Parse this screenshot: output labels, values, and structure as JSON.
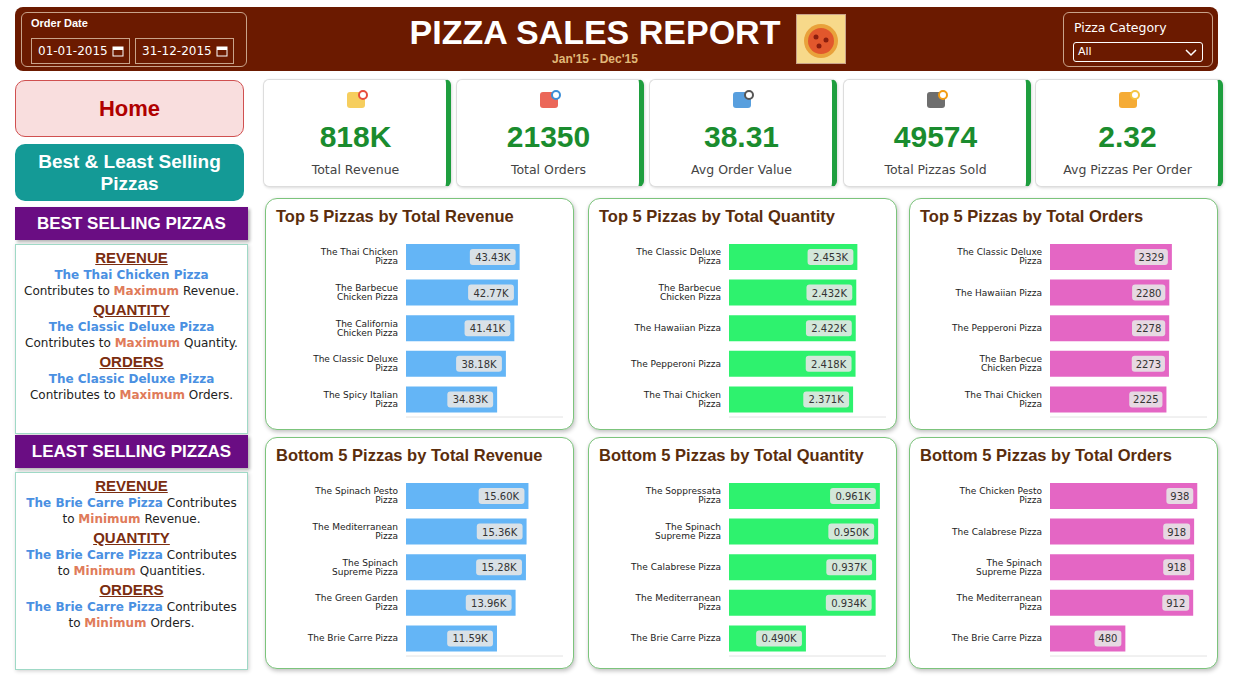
{
  "header": {
    "title": "PIZZA SALES REPORT",
    "subtitle": "Jan'15 - Dec'15"
  },
  "filters": {
    "date": {
      "label": "Order Date",
      "start": "01-01-2015",
      "end": "31-12-2015"
    },
    "category": {
      "label": "Pizza Category",
      "value": "All"
    }
  },
  "nav": [
    "Home",
    "Best & Least Selling Pizzas"
  ],
  "kpis": [
    {
      "value": "818K",
      "label": "Total Revenue"
    },
    {
      "value": 21350,
      "label": "Total Orders"
    },
    {
      "value": 38.31,
      "label": "Avg Order Value"
    },
    {
      "value": 49574,
      "label": "Total Pizzas Sold"
    },
    {
      "value": 2.32,
      "label": "Avg Pizzas Per Order"
    }
  ],
  "sidebar": [
    {
      "title": "BEST SELLING PIZZAS",
      "items": [
        {
          "heading": "REVENUE",
          "pizza": "The Thai Chicken Pizza",
          "before": "Contributes to",
          "highlight": "Maximum",
          "after": "Revenue."
        },
        {
          "heading": "QUANTITY",
          "pizza": "The Classic Deluxe Pizza",
          "before": "Contributes to",
          "highlight": "Maximum",
          "after": "Quantity."
        },
        {
          "heading": "ORDERS",
          "pizza": "The Classic Deluxe Pizza",
          "before": "Contributes to",
          "highlight": "Maximum",
          "after": "Orders."
        }
      ]
    },
    {
      "title": "LEAST SELLING PIZZAS",
      "items": [
        {
          "heading": "REVENUE",
          "pizza": "The Brie Carre Pizza",
          "before": "Contributes to",
          "highlight": "Minimum",
          "after": "Revenue."
        },
        {
          "heading": "QUANTITY",
          "pizza": "The Brie Carre Pizza",
          "before": "Contributes to",
          "highlight": "Minimum",
          "after": "Quantities."
        },
        {
          "heading": "ORDERS",
          "pizza": "The Brie Carre Pizza",
          "before": "Contributes to",
          "highlight": "Minimum",
          "after": "Orders."
        }
      ]
    }
  ],
  "chart_data": [
    {
      "type": "bar",
      "orientation": "horizontal",
      "title": "Top 5 Pizzas by Total Revenue",
      "categories": [
        "The Thai Chicken Pizza",
        "The Barbecue Chicken Pizza",
        "The California Chicken Pizza",
        "The Classic Deluxe Pizza",
        "The Spicy Italian Pizza"
      ],
      "values": [
        43430,
        42770,
        41410,
        38180,
        34830
      ],
      "value_labels": [
        "43.43K",
        "42.77K",
        "41.41K",
        "38.18K",
        "34.83K"
      ],
      "color": "#64b5f6",
      "xlim": [
        0,
        60000
      ],
      "data_labels": true,
      "tick_labels": "y",
      "grid": false
    },
    {
      "type": "bar",
      "orientation": "horizontal",
      "title": "Top 5 Pizzas by Total Quantity",
      "categories": [
        "The Classic Deluxe Pizza",
        "The Barbecue Chicken Pizza",
        "The Hawaiian Pizza",
        "The Pepperoni Pizza",
        "The Thai Chicken Pizza"
      ],
      "values": [
        2453,
        2432,
        2422,
        2418,
        2371
      ],
      "value_labels": [
        "2.453K",
        "2.432K",
        "2.422K",
        "2.418K",
        "2.371K"
      ],
      "color": "#2ef26e",
      "xlim": [
        0,
        3000
      ],
      "data_labels": true,
      "tick_labels": "y",
      "grid": false
    },
    {
      "type": "bar",
      "orientation": "horizontal",
      "title": "Top 5 Pizzas by Total Orders",
      "categories": [
        "The Classic Deluxe Pizza",
        "The Hawaiian Pizza",
        "The Pepperoni Pizza",
        "The Barbecue Chicken Pizza",
        "The Thai Chicken Pizza"
      ],
      "values": [
        2329,
        2280,
        2278,
        2273,
        2225
      ],
      "color": "#e466c4",
      "xlim": [
        0,
        3000
      ],
      "data_labels": true,
      "tick_labels": "y",
      "grid": false
    },
    {
      "type": "bar",
      "orientation": "horizontal",
      "title": "Bottom 5 Pizzas by Total Revenue",
      "categories": [
        "The Spinach Pesto Pizza",
        "The Mediterranean Pizza",
        "The Spinach Supreme Pizza",
        "The Green Garden Pizza",
        "The Brie Carre Pizza"
      ],
      "values": [
        15600,
        15360,
        15280,
        13960,
        11590
      ],
      "value_labels": [
        "15.60K",
        "15.36K",
        "15.28K",
        "13.96K",
        "11.59K"
      ],
      "color": "#64b5f6",
      "xlim": [
        0,
        20000
      ],
      "data_labels": true,
      "tick_labels": "y",
      "grid": false
    },
    {
      "type": "bar",
      "orientation": "horizontal",
      "title": "Bottom 5 Pizzas by Total Quantity",
      "categories": [
        "The Soppressata Pizza",
        "The Spinach Supreme Pizza",
        "The Calabrese Pizza",
        "The Mediterranean Pizza",
        "The Brie Carre Pizza"
      ],
      "values": [
        961,
        950,
        937,
        934,
        490
      ],
      "value_labels": [
        "0.961K",
        "0.950K",
        "0.937K",
        "0.934K",
        "0.490K"
      ],
      "color": "#2ef26e",
      "xlim": [
        0,
        1000
      ],
      "data_labels": true,
      "tick_labels": "y",
      "grid": false
    },
    {
      "type": "bar",
      "orientation": "horizontal",
      "title": "Bottom 5 Pizzas by Total Orders",
      "categories": [
        "The Chicken Pesto Pizza",
        "The Calabrese Pizza",
        "The Spinach Supreme Pizza",
        "The Mediterranean Pizza",
        "The Brie Carre Pizza"
      ],
      "values": [
        938,
        918,
        918,
        912,
        480
      ],
      "color": "#e466c4",
      "xlim": [
        0,
        1000
      ],
      "data_labels": true,
      "tick_labels": "y",
      "grid": false
    }
  ]
}
